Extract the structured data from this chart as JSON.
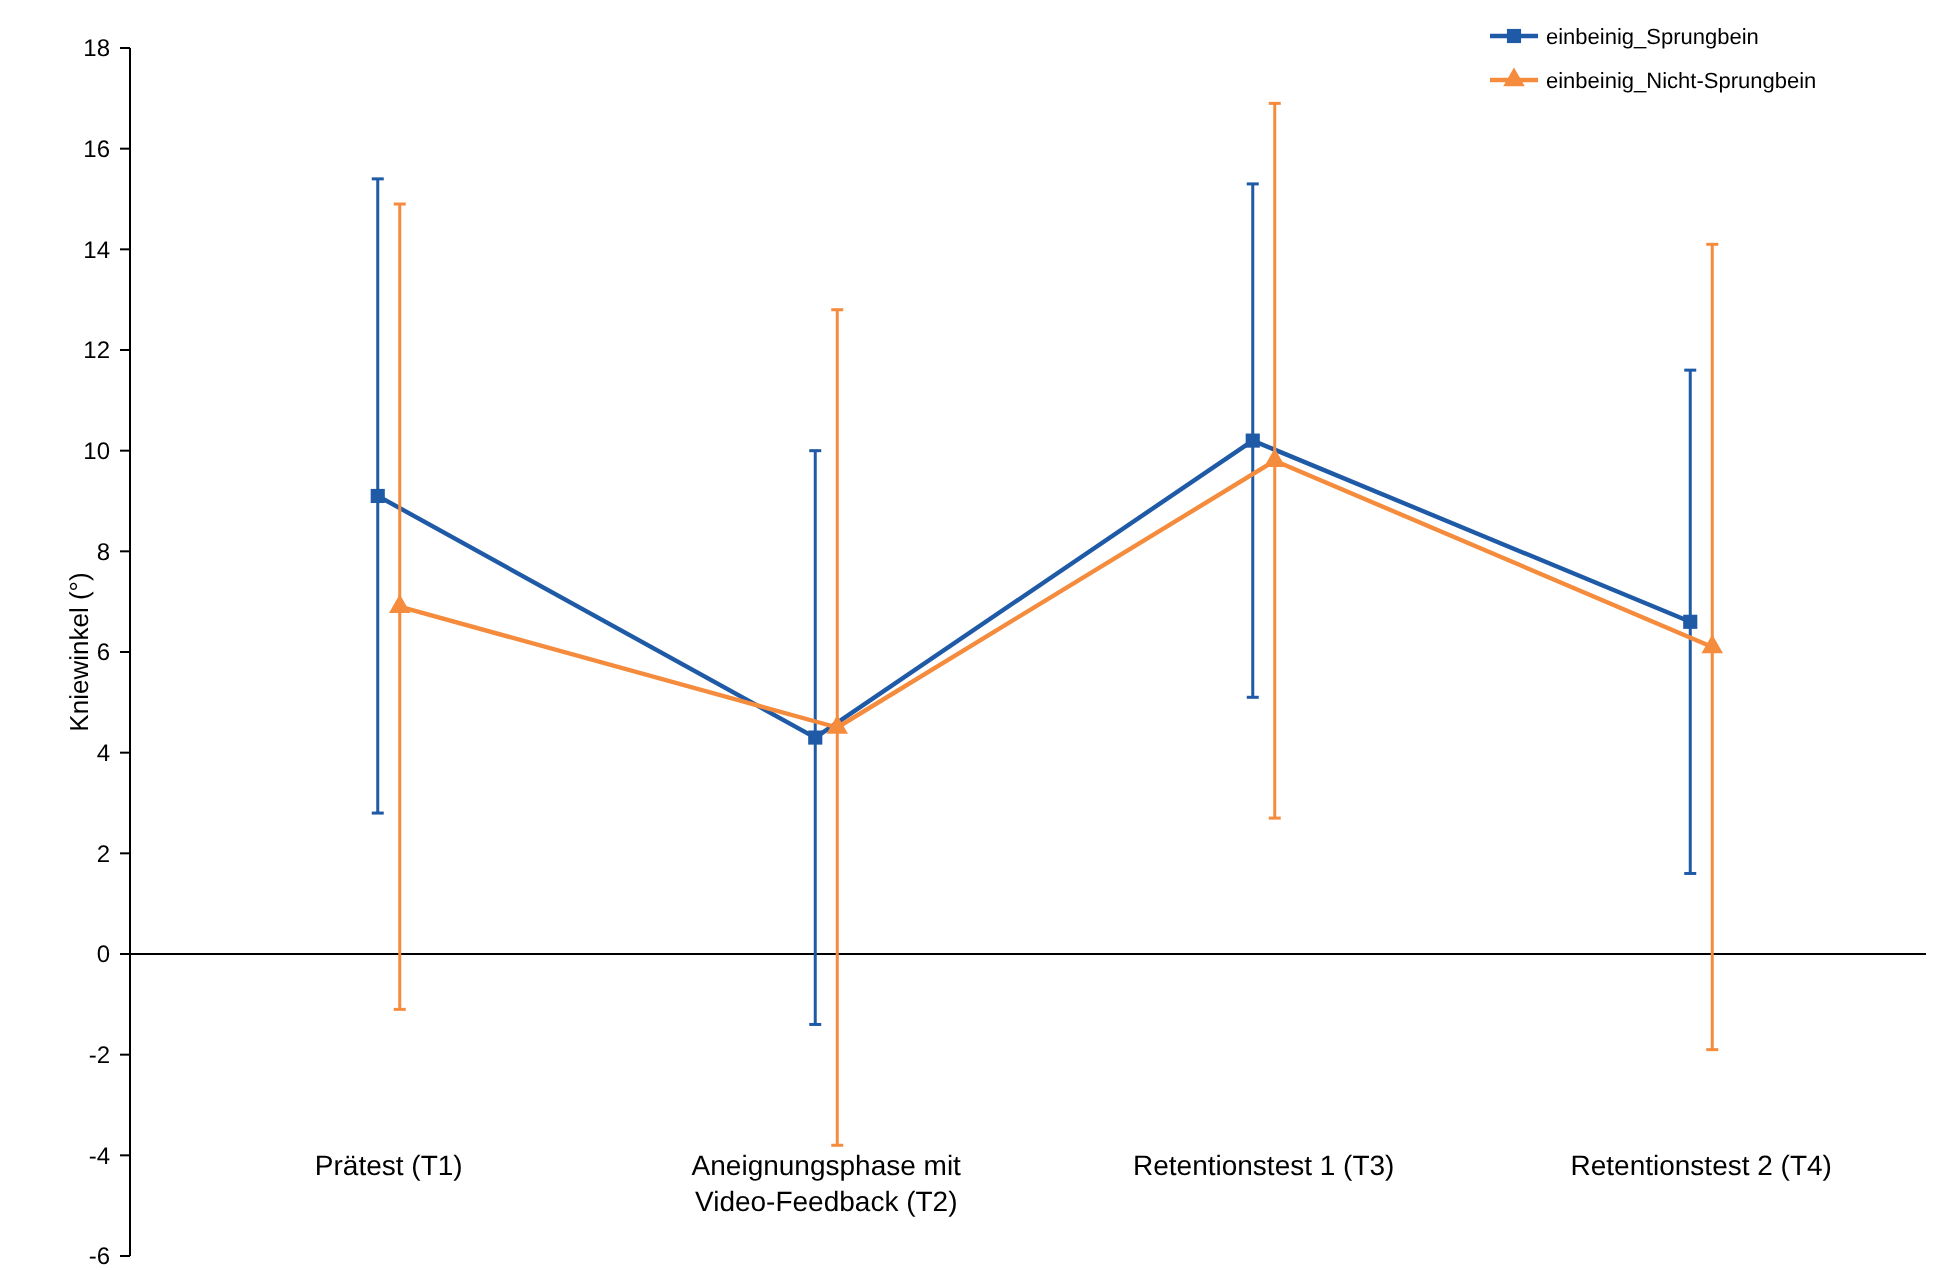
{
  "chart_data": {
    "type": "line",
    "ylabel": "Kniewinkel (°)",
    "categories": [
      "Prätest (T1)",
      "Aneignungsphase mit Video-Feedback (T2)",
      "Retentionstest 1 (T3)",
      "Retentionstest 2 (T4)"
    ],
    "series": [
      {
        "name": "einbeinig_Sprungbein",
        "color": "#1f5aa6",
        "marker": "square",
        "values": [
          9.1,
          4.3,
          10.2,
          6.6
        ],
        "errors": [
          6.3,
          5.7,
          5.1,
          5.0
        ]
      },
      {
        "name": "einbeinig_Nicht-Sprungbein",
        "color": "#f58b3c",
        "marker": "triangle",
        "values": [
          6.9,
          4.5,
          9.8,
          6.1
        ],
        "errors": [
          8.0,
          8.3,
          7.1,
          8.0
        ]
      }
    ],
    "ylim": [
      -6,
      18
    ],
    "yticks": [
      -6,
      -4,
      -2,
      0,
      2,
      4,
      6,
      8,
      10,
      12,
      14,
      16,
      18
    ],
    "ref_lines": [
      {
        "axis": "y",
        "value": 0,
        "color": "#000000"
      }
    ],
    "legend": "top right"
  }
}
